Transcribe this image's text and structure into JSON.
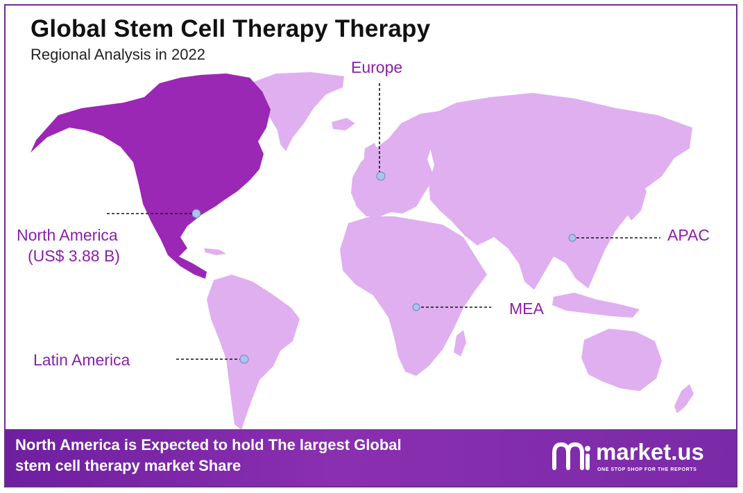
{
  "header": {
    "title": "Global Stem Cell Therapy Therapy",
    "subtitle": "Regional Analysis in 2022"
  },
  "regions": {
    "north_america": {
      "name": "North America",
      "value": "(US$ 3.88 B)"
    },
    "europe": {
      "name": "Europe"
    },
    "apac": {
      "name": "APAC"
    },
    "mea": {
      "name": "MEA"
    },
    "latin_america": {
      "name": "Latin America"
    }
  },
  "footer": {
    "line1": "North America is Expected to hold The largest Global",
    "line2": "stem cell therapy  market Share"
  },
  "brand": {
    "name": "market.us",
    "tagline": "ONE STOP SHOP FOR THE REPORTS"
  },
  "colors": {
    "highlight_region": "#9b27b5",
    "other_regions": "#e0aff0",
    "label": "#8a1fa8",
    "marker": "#a9c4ef",
    "footer": "#7a2aa8"
  }
}
